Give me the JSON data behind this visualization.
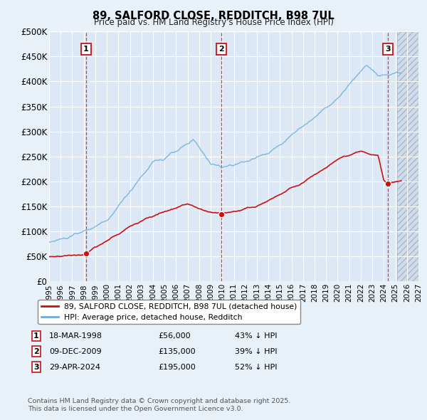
{
  "title": "89, SALFORD CLOSE, REDDITCH, B98 7UL",
  "subtitle": "Price paid vs. HM Land Registry's House Price Index (HPI)",
  "transactions": [
    {
      "num": 1,
      "date": "18-MAR-1998",
      "date_x": 1998.21,
      "price": 56000,
      "pct": "43% ↓ HPI"
    },
    {
      "num": 2,
      "date": "09-DEC-2009",
      "date_x": 2009.94,
      "price": 135000,
      "pct": "39% ↓ HPI"
    },
    {
      "num": 3,
      "date": "29-APR-2024",
      "date_x": 2024.33,
      "price": 195000,
      "pct": "52% ↓ HPI"
    }
  ],
  "red_line_label": "89, SALFORD CLOSE, REDDITCH, B98 7UL (detached house)",
  "blue_line_label": "HPI: Average price, detached house, Redditch",
  "footer": "Contains HM Land Registry data © Crown copyright and database right 2025.\nThis data is licensed under the Open Government Licence v3.0.",
  "xlim": [
    1995,
    2027
  ],
  "ylim": [
    0,
    500000
  ],
  "yticks": [
    0,
    50000,
    100000,
    150000,
    200000,
    250000,
    300000,
    350000,
    400000,
    450000,
    500000
  ],
  "ytick_labels": [
    "£0",
    "£50K",
    "£100K",
    "£150K",
    "£200K",
    "£250K",
    "£300K",
    "£350K",
    "£400K",
    "£450K",
    "£500K"
  ],
  "bg_color": "#e8f0f8",
  "plot_bg_color": "#dce8f5",
  "grid_color": "#c8d8e8",
  "hatch_start": 2025.17,
  "hatch_color": "#c8d8ea",
  "marker_prices": [
    56000,
    135000,
    195000
  ],
  "red_color": "#cc1111",
  "blue_color": "#6baed6"
}
